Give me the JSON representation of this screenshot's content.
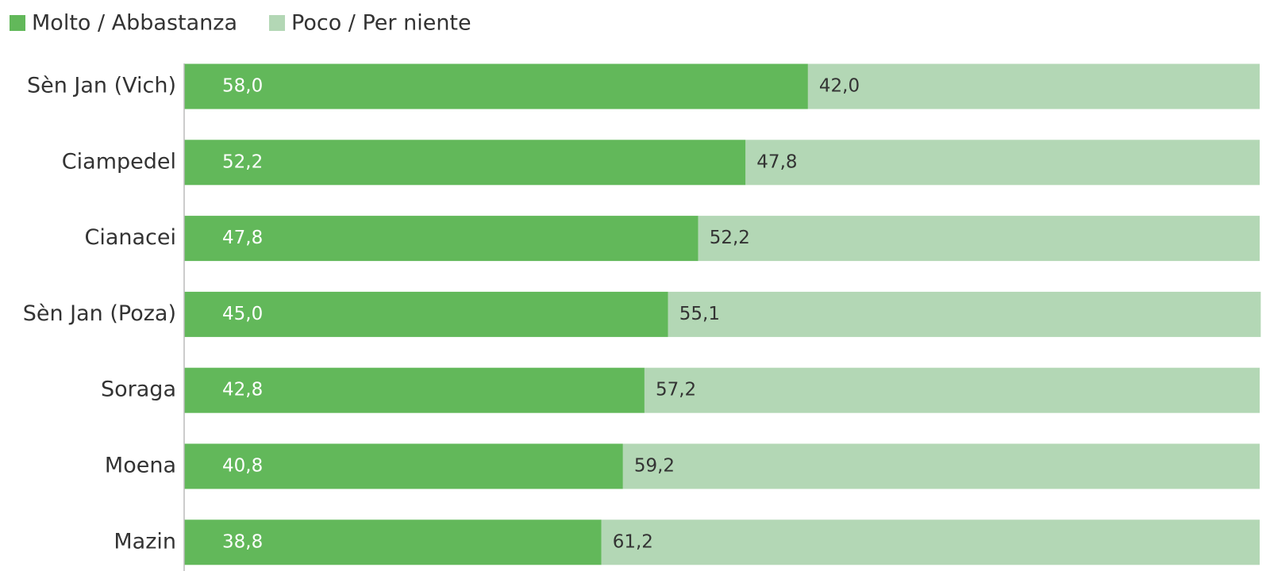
{
  "chart_data": {
    "type": "stacked_bar_horizontal",
    "categories": [
      "Sèn Jan (Vich)",
      "Ciampedel",
      "Cianacei",
      "Sèn Jan (Poza)",
      "Soraga",
      "Moena",
      "Mazin"
    ],
    "series": [
      {
        "name": "Molto / Abbastanza",
        "color": "#62b85a",
        "values": [
          58.0,
          52.2,
          47.8,
          45.0,
          42.8,
          40.8,
          38.8
        ],
        "value_labels": [
          "58,0",
          "52,2",
          "47,8",
          "45,0",
          "42,8",
          "40,8",
          "38,8"
        ]
      },
      {
        "name": "Poco / Per niente",
        "color": "#b3d7b5",
        "values": [
          42.0,
          47.8,
          52.2,
          55.1,
          57.2,
          59.2,
          61.2
        ],
        "value_labels": [
          "42,0",
          "47,8",
          "52,2",
          "55,1",
          "57,2",
          "59,2",
          "61,2"
        ]
      }
    ],
    "xlim": [
      0,
      100
    ],
    "legend": "top-left"
  }
}
